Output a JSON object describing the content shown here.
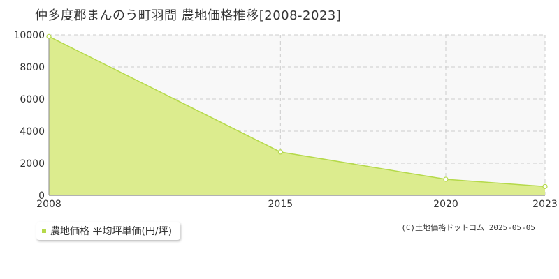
{
  "title": "仲多度郡まんのう町羽間 農地価格推移[2008-2023]",
  "legend": {
    "label": "農地価格 平均坪単価(円/坪)"
  },
  "credit": "(C)土地価格ドットコム 2025-05-05",
  "colors": {
    "fill": "#dcec8e",
    "line": "#b5d94a",
    "plot_bg": "#f8f8f8",
    "grid": "#cccccc"
  },
  "chart_data": {
    "type": "area",
    "title": "仲多度郡まんのう町羽間 農地価格推移[2008-2023]",
    "x": [
      2008,
      2015,
      2020,
      2023
    ],
    "xticks": [
      2008,
      2015,
      2020,
      2023
    ],
    "xlim": [
      2008,
      2023
    ],
    "ylim": [
      0,
      10000
    ],
    "yticks": [
      0,
      2000,
      4000,
      6000,
      8000,
      10000
    ],
    "series": [
      {
        "name": "農地価格 平均坪単価(円/坪)",
        "values": [
          9900,
          2700,
          1000,
          550
        ]
      }
    ],
    "grid": true,
    "legend_position": "bottom-left"
  }
}
